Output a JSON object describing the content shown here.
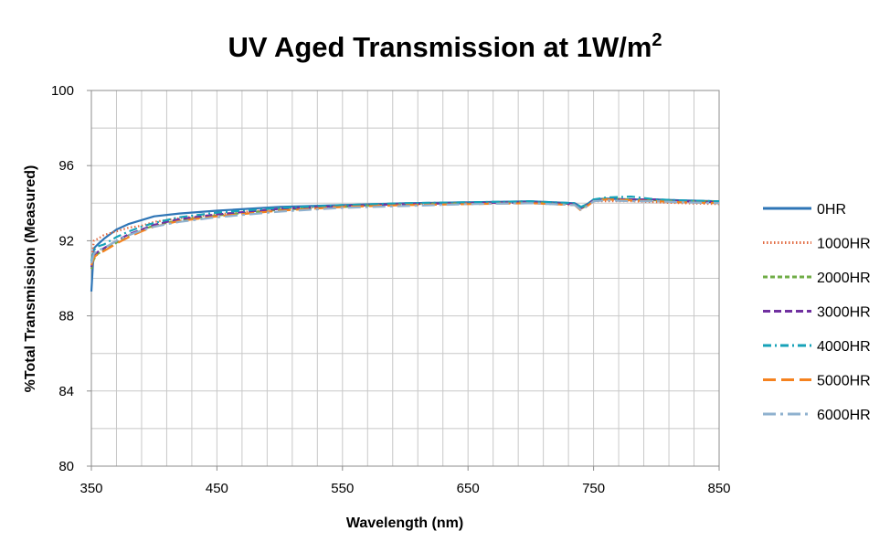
{
  "chart_data": {
    "type": "line",
    "title": "UV Aged Transmission at 1W/m",
    "title_superscript": "2",
    "xlabel": "Wavelength (nm)",
    "ylabel": "%Total Transmission (Measured)",
    "xlim": [
      350,
      850
    ],
    "ylim": [
      80,
      100
    ],
    "x_ticks": [
      "350",
      "450",
      "550",
      "650",
      "750",
      "850"
    ],
    "y_ticks": [
      "80",
      "84",
      "88",
      "92",
      "96",
      "100"
    ],
    "x_minor_step": 20,
    "y_minor_step": 2,
    "grid": true,
    "legend_position": "right",
    "series": [
      {
        "name": "0HR",
        "color": "#2e75b6",
        "dash": "solid",
        "x": [
          350,
          352,
          355,
          360,
          370,
          380,
          390,
          400,
          420,
          450,
          500,
          550,
          600,
          650,
          700,
          735,
          740,
          745,
          750,
          760,
          780,
          800,
          820,
          850
        ],
        "values": [
          89.3,
          91.6,
          91.8,
          92.1,
          92.6,
          92.9,
          93.1,
          93.3,
          93.45,
          93.6,
          93.8,
          93.9,
          94.0,
          94.05,
          94.1,
          94.0,
          93.8,
          93.95,
          94.2,
          94.25,
          94.2,
          94.2,
          94.15,
          94.1
        ]
      },
      {
        "name": "1000HR",
        "color": "#e26a40",
        "dash": "dotted",
        "x": [
          350,
          352,
          355,
          360,
          370,
          380,
          390,
          400,
          420,
          450,
          500,
          550,
          600,
          650,
          700,
          735,
          740,
          745,
          750,
          760,
          780,
          800,
          820,
          850
        ],
        "values": [
          90.8,
          92.0,
          92.1,
          92.3,
          92.5,
          92.7,
          92.8,
          93.0,
          93.2,
          93.4,
          93.7,
          93.85,
          93.95,
          94.0,
          94.0,
          93.9,
          93.7,
          93.9,
          94.1,
          94.1,
          94.1,
          94.05,
          94.0,
          93.95
        ]
      },
      {
        "name": "2000HR",
        "color": "#70ad47",
        "dash": "dashed-short",
        "x": [
          350,
          352,
          355,
          360,
          370,
          380,
          390,
          400,
          420,
          450,
          500,
          550,
          600,
          650,
          700,
          735,
          740,
          745,
          750,
          760,
          780,
          800,
          820,
          850
        ],
        "values": [
          90.5,
          91.0,
          91.3,
          91.5,
          91.9,
          92.3,
          92.6,
          92.8,
          93.1,
          93.35,
          93.65,
          93.8,
          93.95,
          94.0,
          94.05,
          93.95,
          93.7,
          93.9,
          94.15,
          94.25,
          94.2,
          94.15,
          94.1,
          94.1
        ]
      },
      {
        "name": "3000HR",
        "color": "#7030a0",
        "dash": "dashed",
        "x": [
          350,
          352,
          355,
          360,
          370,
          380,
          390,
          400,
          420,
          450,
          500,
          550,
          600,
          650,
          700,
          735,
          740,
          745,
          750,
          760,
          780,
          800,
          820,
          850
        ],
        "values": [
          90.6,
          91.2,
          91.4,
          91.6,
          92.0,
          92.35,
          92.6,
          92.85,
          93.15,
          93.4,
          93.7,
          93.85,
          93.95,
          94.0,
          94.05,
          93.95,
          93.75,
          93.9,
          94.15,
          94.2,
          94.2,
          94.2,
          94.1,
          94.05
        ]
      },
      {
        "name": "4000HR",
        "color": "#17a2b8",
        "dash": "dash-dot",
        "x": [
          350,
          352,
          355,
          360,
          370,
          380,
          390,
          400,
          420,
          450,
          500,
          550,
          600,
          650,
          700,
          735,
          740,
          745,
          750,
          760,
          780,
          800,
          820,
          850
        ],
        "values": [
          90.9,
          91.5,
          91.7,
          91.8,
          92.2,
          92.5,
          92.75,
          92.95,
          93.25,
          93.5,
          93.75,
          93.9,
          94.0,
          94.05,
          94.1,
          94.0,
          93.8,
          93.95,
          94.2,
          94.3,
          94.35,
          94.2,
          94.15,
          94.1
        ]
      },
      {
        "name": "5000HR",
        "color": "#f5821f",
        "dash": "long-dash",
        "x": [
          350,
          352,
          355,
          360,
          370,
          380,
          390,
          400,
          420,
          450,
          500,
          550,
          600,
          650,
          700,
          735,
          740,
          745,
          750,
          760,
          780,
          800,
          820,
          850
        ],
        "values": [
          90.7,
          91.1,
          91.3,
          91.45,
          91.85,
          92.2,
          92.5,
          92.75,
          93.05,
          93.3,
          93.6,
          93.8,
          93.9,
          93.95,
          94.0,
          93.9,
          93.6,
          93.85,
          94.1,
          94.2,
          94.15,
          94.1,
          94.05,
          94.0
        ]
      },
      {
        "name": "6000HR",
        "color": "#8fb1cf",
        "dash": "long-dash-dot",
        "x": [
          350,
          352,
          355,
          360,
          370,
          380,
          390,
          400,
          420,
          450,
          500,
          550,
          600,
          650,
          700,
          735,
          740,
          745,
          750,
          760,
          780,
          800,
          820,
          850
        ],
        "values": [
          90.8,
          91.3,
          91.5,
          91.6,
          92.0,
          92.3,
          92.55,
          92.75,
          93.0,
          93.25,
          93.55,
          93.75,
          93.85,
          93.95,
          94.0,
          93.9,
          93.65,
          93.85,
          94.1,
          94.15,
          94.1,
          94.1,
          94.05,
          94.0
        ]
      }
    ]
  }
}
